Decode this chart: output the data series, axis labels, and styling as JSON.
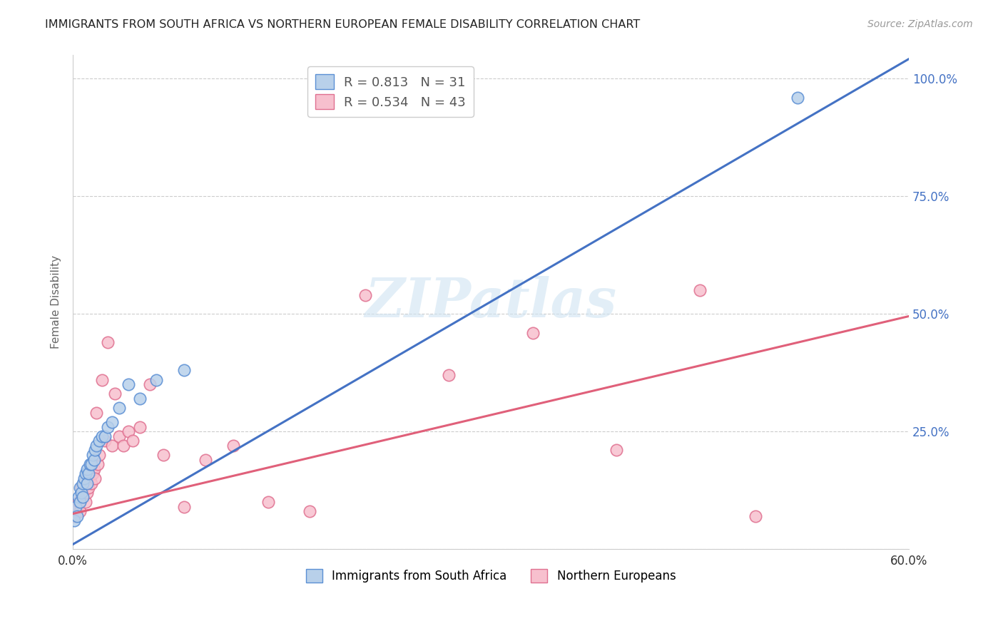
{
  "title": "IMMIGRANTS FROM SOUTH AFRICA VS NORTHERN EUROPEAN FEMALE DISABILITY CORRELATION CHART",
  "source": "Source: ZipAtlas.com",
  "ylabel": "Female Disability",
  "xlim": [
    0.0,
    0.6
  ],
  "ylim": [
    0.0,
    1.05
  ],
  "series1_label": "Immigrants from South Africa",
  "series1_fill_color": "#b8d0ea",
  "series1_edge_color": "#5b8fd4",
  "series1_line_color": "#4472c4",
  "series1_R": 0.813,
  "series1_N": 31,
  "series2_label": "Northern Europeans",
  "series2_fill_color": "#f7c0ce",
  "series2_edge_color": "#e07090",
  "series2_line_color": "#e0607a",
  "series2_R": 0.534,
  "series2_N": 43,
  "blue_slope": 1.72,
  "blue_intercept": 0.01,
  "pink_slope": 0.7,
  "pink_intercept": 0.075,
  "blue_dots_x": [
    0.001,
    0.002,
    0.003,
    0.004,
    0.005,
    0.005,
    0.006,
    0.007,
    0.007,
    0.008,
    0.009,
    0.01,
    0.01,
    0.011,
    0.012,
    0.013,
    0.014,
    0.015,
    0.016,
    0.017,
    0.019,
    0.021,
    0.023,
    0.025,
    0.028,
    0.033,
    0.04,
    0.048,
    0.06,
    0.08,
    0.52
  ],
  "blue_dots_y": [
    0.06,
    0.09,
    0.07,
    0.11,
    0.1,
    0.13,
    0.12,
    0.14,
    0.11,
    0.15,
    0.16,
    0.14,
    0.17,
    0.16,
    0.18,
    0.18,
    0.2,
    0.19,
    0.21,
    0.22,
    0.23,
    0.24,
    0.24,
    0.26,
    0.27,
    0.3,
    0.35,
    0.32,
    0.36,
    0.38,
    0.96
  ],
  "pink_dots_x": [
    0.001,
    0.002,
    0.003,
    0.004,
    0.005,
    0.006,
    0.006,
    0.007,
    0.008,
    0.009,
    0.01,
    0.011,
    0.012,
    0.013,
    0.014,
    0.015,
    0.016,
    0.017,
    0.018,
    0.019,
    0.021,
    0.023,
    0.025,
    0.028,
    0.03,
    0.033,
    0.036,
    0.04,
    0.043,
    0.048,
    0.055,
    0.065,
    0.08,
    0.095,
    0.115,
    0.14,
    0.17,
    0.21,
    0.27,
    0.33,
    0.39,
    0.45,
    0.49
  ],
  "pink_dots_y": [
    0.07,
    0.08,
    0.09,
    0.1,
    0.08,
    0.11,
    0.13,
    0.12,
    0.14,
    0.1,
    0.12,
    0.13,
    0.15,
    0.14,
    0.16,
    0.17,
    0.15,
    0.29,
    0.18,
    0.2,
    0.36,
    0.23,
    0.44,
    0.22,
    0.33,
    0.24,
    0.22,
    0.25,
    0.23,
    0.26,
    0.35,
    0.2,
    0.09,
    0.19,
    0.22,
    0.1,
    0.08,
    0.54,
    0.37,
    0.46,
    0.21,
    0.55,
    0.07
  ],
  "watermark": "ZIPatlas",
  "background_color": "#ffffff",
  "grid_color": "#cccccc",
  "right_tick_color": "#4472c4"
}
